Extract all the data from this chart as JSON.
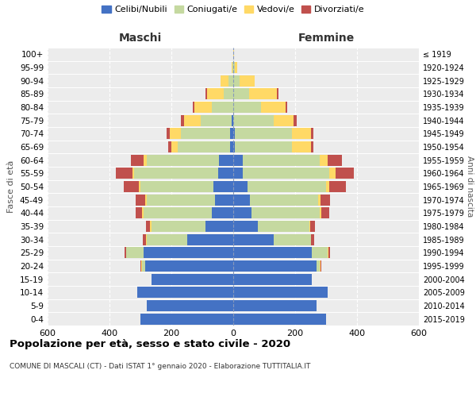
{
  "age_groups": [
    "0-4",
    "5-9",
    "10-14",
    "15-19",
    "20-24",
    "25-29",
    "30-34",
    "35-39",
    "40-44",
    "45-49",
    "50-54",
    "55-59",
    "60-64",
    "65-69",
    "70-74",
    "75-79",
    "80-84",
    "85-89",
    "90-94",
    "95-99",
    "100+"
  ],
  "birth_years": [
    "2015-2019",
    "2010-2014",
    "2005-2009",
    "2000-2004",
    "1995-1999",
    "1990-1994",
    "1985-1989",
    "1980-1984",
    "1975-1979",
    "1970-1974",
    "1965-1969",
    "1960-1964",
    "1955-1959",
    "1950-1954",
    "1945-1949",
    "1940-1944",
    "1935-1939",
    "1930-1934",
    "1925-1929",
    "1920-1924",
    "≤ 1919"
  ],
  "male": {
    "celibi": [
      300,
      280,
      310,
      265,
      285,
      290,
      150,
      90,
      70,
      60,
      65,
      50,
      45,
      10,
      10,
      5,
      0,
      0,
      0,
      0,
      0
    ],
    "coniugati": [
      0,
      0,
      0,
      0,
      10,
      55,
      130,
      175,
      220,
      220,
      235,
      270,
      235,
      170,
      160,
      100,
      70,
      30,
      15,
      2,
      0
    ],
    "vedovi": [
      0,
      0,
      0,
      0,
      2,
      2,
      2,
      3,
      5,
      5,
      5,
      5,
      10,
      20,
      35,
      55,
      55,
      55,
      25,
      3,
      0
    ],
    "divorziati": [
      0,
      0,
      0,
      0,
      2,
      5,
      10,
      15,
      20,
      30,
      50,
      55,
      40,
      10,
      10,
      8,
      5,
      5,
      0,
      0,
      0
    ]
  },
  "female": {
    "nubili": [
      300,
      270,
      305,
      255,
      270,
      255,
      130,
      80,
      60,
      55,
      45,
      30,
      30,
      5,
      5,
      0,
      0,
      0,
      0,
      0,
      0
    ],
    "coniugate": [
      0,
      0,
      0,
      0,
      10,
      50,
      120,
      165,
      220,
      220,
      255,
      280,
      250,
      185,
      185,
      130,
      90,
      50,
      20,
      5,
      0
    ],
    "vedove": [
      0,
      0,
      0,
      0,
      2,
      2,
      2,
      3,
      5,
      8,
      10,
      20,
      25,
      60,
      60,
      65,
      80,
      90,
      50,
      8,
      2
    ],
    "divorziate": [
      0,
      0,
      0,
      0,
      2,
      5,
      10,
      15,
      25,
      30,
      55,
      60,
      45,
      10,
      10,
      10,
      5,
      5,
      0,
      0,
      0
    ]
  },
  "colors": {
    "celibi_nubili": "#4472c4",
    "coniugati": "#c5d9a0",
    "vedovi": "#ffd966",
    "divorziati": "#c0504d"
  },
  "xlim": 600,
  "title": "Popolazione per età, sesso e stato civile - 2020",
  "subtitle": "COMUNE DI MASCALI (CT) - Dati ISTAT 1° gennaio 2020 - Elaborazione TUTTITALIA.IT",
  "xlabel_left": "Maschi",
  "xlabel_right": "Femmine",
  "ylabel_left": "Fasce di età",
  "ylabel_right": "Anni di nascita",
  "legend_labels": [
    "Celibi/Nubili",
    "Coniugati/e",
    "Vedovi/e",
    "Divorziati/e"
  ],
  "background_color": "#ffffff",
  "plot_bg_color": "#ececec",
  "grid_color": "#ffffff"
}
